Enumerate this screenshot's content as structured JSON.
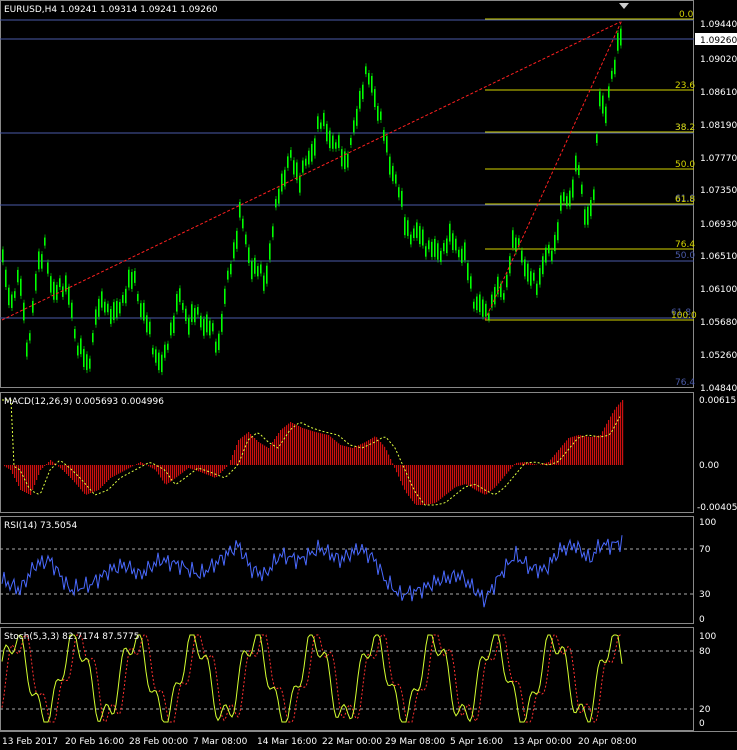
{
  "main": {
    "symbol_header": "EURUSD,H4  1.09241 1.09314 1.09241 1.09260",
    "price_ticks": [
      "1.09440",
      "1.09260",
      "1.09020",
      "1.08610",
      "1.08190",
      "1.07770",
      "1.07350",
      "1.06930",
      "1.06510",
      "1.06100",
      "1.05680",
      "1.05260",
      "1.04840"
    ],
    "current_price": "1.09260",
    "fib_levels": [
      "0.0",
      "23.6",
      "38.2",
      "50.0",
      "61.8",
      "76.4",
      "100.0"
    ],
    "fib2_levels": [
      "38.2",
      "61.8",
      "50.0",
      "61.8",
      "100.0",
      "76.4"
    ],
    "colors": {
      "bull": "#00ff00",
      "grid": "#4a5aa8",
      "fib": "#d4d400",
      "trend": "#ff2020",
      "axis": "#ffffff"
    }
  },
  "macd": {
    "header": "MACD(12,26,9) 0.005693 0.004996",
    "ticks": [
      "0.006157",
      "0.00",
      "-0.004053"
    ]
  },
  "rsi": {
    "header": "RSI(14) 73.5054",
    "ticks": [
      "100",
      "70",
      "30",
      "0"
    ]
  },
  "stoch": {
    "header": "Stoch(5,3,3) 82.7174 87.5775",
    "ticks": [
      "100",
      "80",
      "20",
      "0"
    ]
  },
  "time_axis": [
    "13 Feb 2017",
    "20 Feb 16:00",
    "28 Feb 00:00",
    "7 Mar 08:00",
    "14 Mar 16:00",
    "22 Mar 00:00",
    "29 Mar 08:00",
    "5 Apr 16:00",
    "13 Apr 00:00",
    "20 Apr 08:00"
  ]
}
